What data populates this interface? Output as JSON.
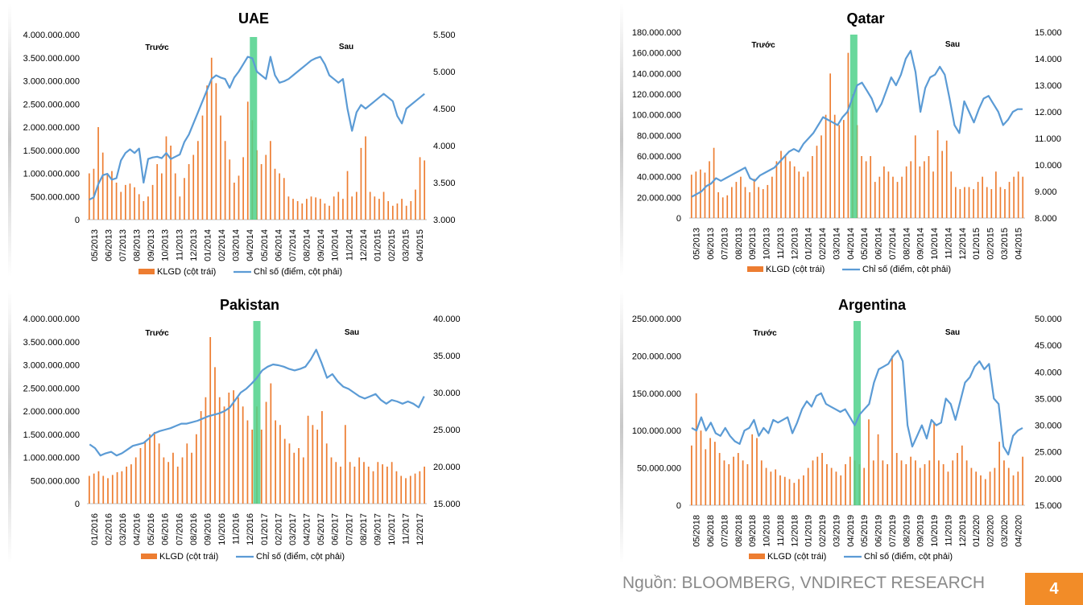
{
  "footer": {
    "source": "Nguồn: BLOOMBERG, VNDIRECT RESEARCH",
    "page_number": "4"
  },
  "colors": {
    "bars": "#ed7d31",
    "line": "#5b9bd5",
    "highlight": "#4fd18b"
  },
  "chart_data": [
    {
      "type": "bar",
      "title": "UAE",
      "before_label": "Trước",
      "after_label": "Sau",
      "left_ticks": [
        "0",
        "500.000.000",
        "1.000.000.000",
        "1.500.000.000",
        "2.000.000.000",
        "2.500.000.000",
        "3.000.000.000",
        "3.500.000.000",
        "4.000.000.000"
      ],
      "right_ticks": [
        "3.000",
        "3.500",
        "4.000",
        "4.500",
        "5.000",
        "5.500"
      ],
      "ylim_left": [
        0,
        4000000000
      ],
      "ylim_right": [
        3000,
        5500
      ],
      "x_labels": [
        "05/2013",
        "06/2013",
        "07/2013",
        "08/2013",
        "09/2013",
        "10/2013",
        "11/2013",
        "12/2013",
        "01/2014",
        "02/2014",
        "03/2014",
        "04/2014",
        "05/2014",
        "06/2014",
        "07/2014",
        "08/2014",
        "09/2014",
        "10/2014",
        "11/2014",
        "12/2014",
        "01/2015",
        "02/2015",
        "03/2015",
        "04/2015"
      ],
      "highlight_position": 0.49,
      "series": [
        {
          "name": "KLGD (cột trái)",
          "type": "bar",
          "values": [
            1000000000,
            1100000000,
            2000000000,
            1450000000,
            1000000000,
            1050000000,
            800000000,
            600000000,
            750000000,
            780000000,
            700000000,
            550000000,
            400000000,
            500000000,
            750000000,
            1200000000,
            1000000000,
            1800000000,
            1600000000,
            1000000000,
            500000000,
            900000000,
            1200000000,
            1400000000,
            1700000000,
            2250000000,
            2900000000,
            3500000000,
            2950000000,
            2250000000,
            1700000000,
            1300000000,
            800000000,
            950000000,
            1350000000,
            2550000000,
            2150000000,
            1500000000,
            1200000000,
            1400000000,
            1700000000,
            1100000000,
            1000000000,
            900000000,
            500000000,
            450000000,
            400000000,
            350000000,
            450000000,
            500000000,
            480000000,
            450000000,
            350000000,
            300000000,
            500000000,
            600000000,
            450000000,
            1050000000,
            500000000,
            600000000,
            1550000000,
            1800000000,
            600000000,
            500000000,
            450000000,
            600000000,
            400000000,
            300000000,
            350000000,
            450000000,
            300000000,
            400000000,
            650000000,
            1350000000,
            1280000000
          ]
        },
        {
          "name": "Chỉ số (điểm, cột phải)",
          "type": "line",
          "values": [
            3270,
            3300,
            3480,
            3600,
            3620,
            3540,
            3560,
            3800,
            3900,
            3950,
            3900,
            3960,
            3500,
            3820,
            3840,
            3850,
            3830,
            3900,
            3820,
            3850,
            3880,
            4050,
            4150,
            4300,
            4450,
            4600,
            4750,
            4900,
            4950,
            4920,
            4900,
            4780,
            4920,
            5000,
            5100,
            5200,
            5180,
            5000,
            4950,
            4900,
            5200,
            4950,
            4850,
            4870,
            4900,
            4950,
            5000,
            5050,
            5100,
            5150,
            5180,
            5200,
            5100,
            4950,
            4900,
            4850,
            4900,
            4500,
            4200,
            4450,
            4550,
            4500,
            4550,
            4600,
            4650,
            4700,
            4650,
            4600,
            4400,
            4300,
            4500,
            4550,
            4600,
            4650,
            4700
          ]
        }
      ]
    },
    {
      "type": "bar",
      "title": "Qatar",
      "before_label": "Trước",
      "after_label": "Sau",
      "left_ticks": [
        "0",
        "20.000.000",
        "40.000.000",
        "60.000.000",
        "80.000.000",
        "100.000.000",
        "120.000.000",
        "140.000.000",
        "160.000.000",
        "180.000.000"
      ],
      "right_ticks": [
        "8.000",
        "9.000",
        "10.000",
        "11.000",
        "12.000",
        "13.000",
        "14.000",
        "15.000"
      ],
      "ylim_left": [
        0,
        180000000
      ],
      "ylim_right": [
        8000,
        15000
      ],
      "x_labels": [
        "05/2013",
        "06/2013",
        "07/2013",
        "08/2013",
        "09/2013",
        "10/2013",
        "11/2013",
        "12/2013",
        "01/2014",
        "02/2014",
        "03/2014",
        "04/2014",
        "05/2014",
        "06/2014",
        "07/2014",
        "08/2014",
        "09/2014",
        "10/2014",
        "11/2014",
        "12/2014",
        "01/2015",
        "02/2015",
        "03/2015",
        "04/2015"
      ],
      "highlight_position": 0.49,
      "series": [
        {
          "name": "KLGD (cột trái)",
          "type": "bar",
          "values": [
            42000000,
            45000000,
            47000000,
            44000000,
            55000000,
            68000000,
            25000000,
            20000000,
            22000000,
            30000000,
            35000000,
            40000000,
            30000000,
            25000000,
            38000000,
            30000000,
            28000000,
            32000000,
            40000000,
            55000000,
            65000000,
            60000000,
            55000000,
            50000000,
            45000000,
            40000000,
            45000000,
            60000000,
            70000000,
            80000000,
            100000000,
            140000000,
            100000000,
            90000000,
            95000000,
            160000000,
            120000000,
            90000000,
            60000000,
            55000000,
            60000000,
            35000000,
            40000000,
            50000000,
            45000000,
            40000000,
            35000000,
            40000000,
            50000000,
            55000000,
            80000000,
            50000000,
            55000000,
            60000000,
            45000000,
            85000000,
            65000000,
            75000000,
            45000000,
            30000000,
            28000000,
            30000000,
            30000000,
            28000000,
            35000000,
            40000000,
            30000000,
            28000000,
            45000000,
            30000000,
            28000000,
            35000000,
            40000000,
            45000000,
            40000000
          ]
        },
        {
          "name": "Chỉ số (điểm, cột phải)",
          "type": "line",
          "values": [
            8800,
            8900,
            9000,
            9200,
            9300,
            9500,
            9400,
            9500,
            9600,
            9700,
            9800,
            9900,
            9500,
            9400,
            9600,
            9700,
            9800,
            9900,
            10100,
            10300,
            10500,
            10600,
            10500,
            10800,
            11000,
            11200,
            11500,
            11800,
            11700,
            11600,
            11500,
            11800,
            12000,
            12500,
            13000,
            13100,
            12800,
            12500,
            12000,
            12300,
            12800,
            13300,
            13000,
            13400,
            14000,
            14300,
            13500,
            12000,
            12900,
            13300,
            13400,
            13700,
            13400,
            12500,
            11500,
            11200,
            12400,
            12000,
            11600,
            12100,
            12500,
            12600,
            12300,
            12000,
            11500,
            11700,
            12000,
            12100,
            12100
          ]
        }
      ]
    },
    {
      "type": "bar",
      "title": "Pakistan",
      "before_label": "Trước",
      "after_label": "Sau",
      "left_ticks": [
        "0",
        "500.000.000",
        "1.000.000.000",
        "1.500.000.000",
        "2.000.000.000",
        "2.500.000.000",
        "3.000.000.000",
        "3.500.000.000",
        "4.000.000.000"
      ],
      "right_ticks": [
        "15.000",
        "20.000",
        "25.000",
        "30.000",
        "35.000",
        "40.000"
      ],
      "ylim_left": [
        0,
        4000000000
      ],
      "ylim_right": [
        15000,
        40000
      ],
      "x_labels": [
        "01/2016",
        "02/2016",
        "03/2016",
        "04/2016",
        "05/2016",
        "06/2016",
        "07/2016",
        "08/2016",
        "09/2016",
        "10/2016",
        "11/2016",
        "12/2016",
        "01/2017",
        "02/2017",
        "03/2017",
        "04/2017",
        "05/2017",
        "06/2017",
        "07/2017",
        "08/2017",
        "09/2017",
        "10/2017",
        "11/2017",
        "12/2017"
      ],
      "highlight_position": 0.5,
      "series": [
        {
          "name": "KLGD (cột trái)",
          "type": "bar",
          "values": [
            600000000,
            650000000,
            700000000,
            600000000,
            550000000,
            620000000,
            680000000,
            700000000,
            800000000,
            850000000,
            1000000000,
            1200000000,
            1350000000,
            1500000000,
            1550000000,
            1300000000,
            1000000000,
            900000000,
            1100000000,
            800000000,
            1000000000,
            1300000000,
            1100000000,
            1500000000,
            2000000000,
            2300000000,
            3600000000,
            2950000000,
            2300000000,
            2100000000,
            2400000000,
            2450000000,
            2300000000,
            2100000000,
            1800000000,
            1600000000,
            2100000000,
            1600000000,
            2200000000,
            2600000000,
            1800000000,
            1700000000,
            1400000000,
            1300000000,
            1100000000,
            1200000000,
            1000000000,
            1900000000,
            1700000000,
            1600000000,
            2000000000,
            1300000000,
            1000000000,
            900000000,
            800000000,
            1700000000,
            900000000,
            800000000,
            1000000000,
            900000000,
            800000000,
            700000000,
            900000000,
            850000000,
            800000000,
            900000000,
            700000000,
            600000000,
            550000000,
            600000000,
            650000000,
            700000000,
            800000000
          ]
        },
        {
          "name": "Chỉ số (điểm, cột phải)",
          "type": "line",
          "values": [
            23000,
            22500,
            21500,
            21800,
            22000,
            21500,
            21800,
            22300,
            22800,
            23000,
            23200,
            23800,
            24500,
            24800,
            25000,
            25200,
            25500,
            25800,
            25800,
            26000,
            26200,
            26500,
            26800,
            27000,
            27200,
            27500,
            28000,
            29000,
            30000,
            30500,
            31200,
            32000,
            33000,
            33500,
            33800,
            33700,
            33500,
            33200,
            33000,
            33200,
            33500,
            34500,
            35800,
            34000,
            32000,
            32500,
            31500,
            30800,
            30500,
            30000,
            29500,
            29200,
            29500,
            29800,
            29000,
            28500,
            29000,
            28800,
            28500,
            28800,
            28500,
            28000,
            29500
          ]
        }
      ]
    },
    {
      "type": "bar",
      "title": "Argentina",
      "before_label": "Trước",
      "after_label": "Sau",
      "left_ticks": [
        "0",
        "50.000.000",
        "100.000.000",
        "150.000.000",
        "200.000.000",
        "250.000.000"
      ],
      "right_ticks": [
        "15.000",
        "20.000",
        "25.000",
        "30.000",
        "35.000",
        "40.000",
        "45.000",
        "50.000"
      ],
      "ylim_left": [
        0,
        250000000
      ],
      "ylim_right": [
        15000,
        50000
      ],
      "x_labels": [
        "05/2018",
        "06/2018",
        "07/2018",
        "08/2018",
        "09/2018",
        "10/2018",
        "11/2018",
        "12/2018",
        "01/2019",
        "02/2019",
        "03/2019",
        "04/2019",
        "05/2019",
        "06/2019",
        "07/2019",
        "08/2019",
        "09/2019",
        "10/2019",
        "11/2019",
        "12/2019",
        "01/2020",
        "02/2020",
        "03/2020",
        "04/2020"
      ],
      "highlight_position": 0.5,
      "series": [
        {
          "name": "KLGD (cột trái)",
          "type": "bar",
          "values": [
            80000000,
            150000000,
            100000000,
            75000000,
            90000000,
            85000000,
            70000000,
            60000000,
            55000000,
            65000000,
            70000000,
            60000000,
            55000000,
            95000000,
            90000000,
            60000000,
            50000000,
            45000000,
            48000000,
            40000000,
            38000000,
            35000000,
            30000000,
            35000000,
            40000000,
            50000000,
            60000000,
            65000000,
            70000000,
            55000000,
            50000000,
            45000000,
            40000000,
            55000000,
            65000000,
            60000000,
            55000000,
            50000000,
            115000000,
            60000000,
            95000000,
            60000000,
            55000000,
            200000000,
            70000000,
            60000000,
            55000000,
            65000000,
            60000000,
            50000000,
            55000000,
            60000000,
            110000000,
            60000000,
            55000000,
            45000000,
            60000000,
            70000000,
            80000000,
            60000000,
            50000000,
            45000000,
            40000000,
            35000000,
            45000000,
            50000000,
            85000000,
            60000000,
            50000000,
            40000000,
            45000000,
            65000000
          ]
        },
        {
          "name": "Chỉ số (điểm, cột phải)",
          "type": "line",
          "values": [
            29500,
            29000,
            31500,
            29000,
            30500,
            28500,
            28000,
            29500,
            28000,
            27000,
            26500,
            29000,
            29500,
            31000,
            28000,
            29500,
            28500,
            31000,
            30500,
            31000,
            31500,
            28500,
            30500,
            33000,
            34500,
            33500,
            35500,
            36000,
            34000,
            33500,
            33000,
            32500,
            33000,
            31500,
            30000,
            32000,
            33000,
            34000,
            38000,
            40500,
            41000,
            41500,
            43000,
            44000,
            42000,
            30000,
            26000,
            28000,
            30000,
            27500,
            31000,
            30000,
            30500,
            35000,
            34000,
            31000,
            34500,
            38000,
            39000,
            41000,
            42000,
            40500,
            41500,
            35000,
            34000,
            26000,
            24500,
            28000,
            29000,
            29500
          ]
        }
      ]
    }
  ]
}
